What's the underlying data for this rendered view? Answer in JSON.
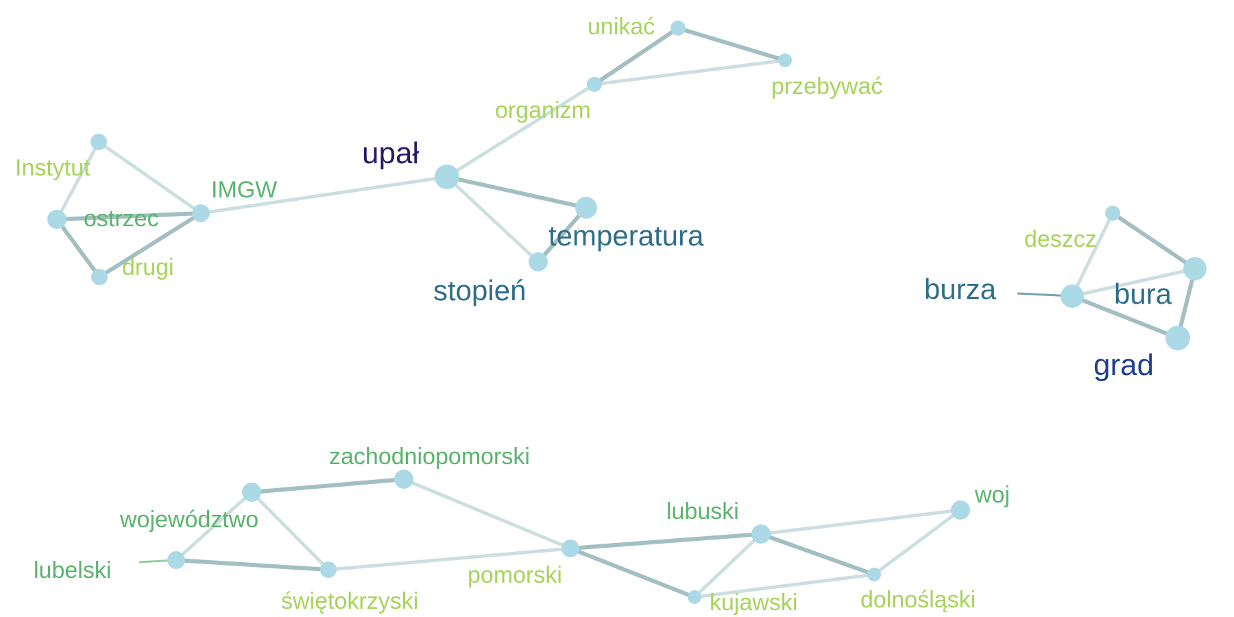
{
  "nodes": [
    {
      "id": "upal",
      "label": "upał",
      "color": "#2a1a66"
    },
    {
      "id": "organizm",
      "label": "organizm",
      "color": "#a6d45a"
    },
    {
      "id": "unikac",
      "label": "unikać",
      "color": "#a6d45a"
    },
    {
      "id": "przebywac",
      "label": "przebywać",
      "color": "#a6d45a"
    },
    {
      "id": "temperatura",
      "label": "temperatura",
      "color": "#2e6d8a"
    },
    {
      "id": "stopien",
      "label": "stopień",
      "color": "#2e6d8a"
    },
    {
      "id": "imgw",
      "label": "IMGW",
      "color": "#5ab46e"
    },
    {
      "id": "instytut",
      "label": "Instytut",
      "color": "#a6d45a"
    },
    {
      "id": "ostrzec",
      "label": "ostrzec",
      "color": "#5ab46e"
    },
    {
      "id": "drugi",
      "label": "drugi",
      "color": "#a6d45a"
    },
    {
      "id": "deszcz",
      "label": "deszcz",
      "color": "#a6d45a"
    },
    {
      "id": "burza",
      "label": "burza",
      "color": "#2e6d8a"
    },
    {
      "id": "bura",
      "label": "bura",
      "color": "#2e6d8a"
    },
    {
      "id": "grad",
      "label": "grad",
      "color": "#1f3f8c"
    },
    {
      "id": "zachodniopomorski",
      "label": "zachodniopomorski",
      "color": "#5ab46e"
    },
    {
      "id": "wojewodztwo",
      "label": "województwo",
      "color": "#5ab46e"
    },
    {
      "id": "lubelski",
      "label": "lubelski",
      "color": "#5ab46e"
    },
    {
      "id": "swietokrzyski",
      "label": "świętokrzyski",
      "color": "#a6d45a"
    },
    {
      "id": "pomorski",
      "label": "pomorski",
      "color": "#a6d45a"
    },
    {
      "id": "lubuski",
      "label": "lubuski",
      "color": "#5ab46e"
    },
    {
      "id": "woj",
      "label": "woj",
      "color": "#5ab46e"
    },
    {
      "id": "kujawski",
      "label": "kujawski",
      "color": "#a6d45a"
    },
    {
      "id": "dolnoslaski",
      "label": "dolnośląski",
      "color": "#a6d45a"
    }
  ],
  "edges": [
    {
      "from": "upal",
      "to": "organizm",
      "weight": "weak"
    },
    {
      "from": "organizm",
      "to": "unikac",
      "weight": "strong"
    },
    {
      "from": "organizm",
      "to": "przebywac",
      "weight": "weak"
    },
    {
      "from": "unikac",
      "to": "przebywac",
      "weight": "strong"
    },
    {
      "from": "upal",
      "to": "temperatura",
      "weight": "strong"
    },
    {
      "from": "upal",
      "to": "stopien",
      "weight": "weak"
    },
    {
      "from": "temperatura",
      "to": "stopien",
      "weight": "strong"
    },
    {
      "from": "upal",
      "to": "imgw",
      "weight": "weak"
    },
    {
      "from": "imgw",
      "to": "instytut",
      "weight": "weak"
    },
    {
      "from": "instytut",
      "to": "ostrzec",
      "weight": "weak"
    },
    {
      "from": "ostrzec",
      "to": "imgw",
      "weight": "strong"
    },
    {
      "from": "ostrzec",
      "to": "drugi",
      "weight": "strong"
    },
    {
      "from": "drugi",
      "to": "imgw",
      "weight": "strong"
    },
    {
      "from": "deszcz",
      "to": "burza",
      "weight": "weak"
    },
    {
      "from": "deszcz",
      "to": "bura",
      "weight": "strong"
    },
    {
      "from": "burza",
      "to": "bura",
      "weight": "weak"
    },
    {
      "from": "burza",
      "to": "grad",
      "weight": "strong"
    },
    {
      "from": "bura",
      "to": "grad",
      "weight": "strong"
    },
    {
      "from": "wojewodztwo",
      "to": "zachodniopomorski",
      "weight": "strong"
    },
    {
      "from": "wojewodztwo",
      "to": "lubelski",
      "weight": "weak"
    },
    {
      "from": "wojewodztwo",
      "to": "swietokrzyski",
      "weight": "weak"
    },
    {
      "from": "lubelski",
      "to": "swietokrzyski",
      "weight": "strong"
    },
    {
      "from": "zachodniopomorski",
      "to": "pomorski",
      "weight": "weak"
    },
    {
      "from": "swietokrzyski",
      "to": "pomorski",
      "weight": "weak"
    },
    {
      "from": "pomorski",
      "to": "lubuski",
      "weight": "strong"
    },
    {
      "from": "pomorski",
      "to": "kujawski",
      "weight": "strong"
    },
    {
      "from": "lubuski",
      "to": "woj",
      "weight": "weak"
    },
    {
      "from": "lubuski",
      "to": "kujawski",
      "weight": "weak"
    },
    {
      "from": "lubuski",
      "to": "dolnoslaski",
      "weight": "strong"
    },
    {
      "from": "woj",
      "to": "dolnoslaski",
      "weight": "weak"
    },
    {
      "from": "kujawski",
      "to": "dolnoslaski",
      "weight": "weak"
    }
  ]
}
